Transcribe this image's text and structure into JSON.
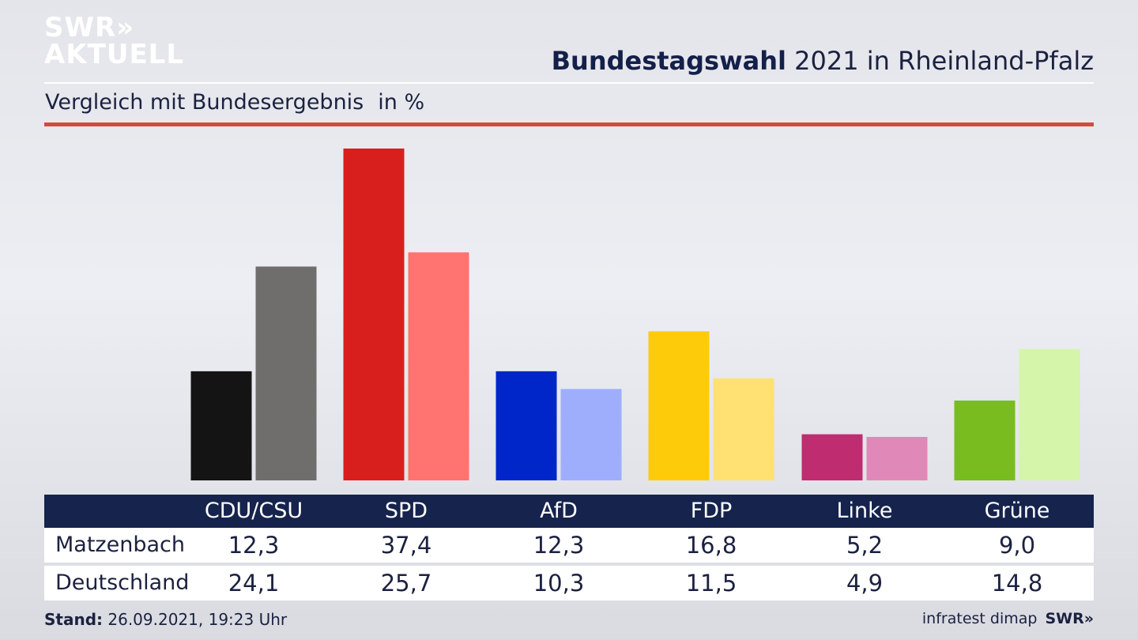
{
  "brand": {
    "line1": "SWR»",
    "line2": "AKTUELL"
  },
  "header": {
    "title_bold": "Bundestagswahl",
    "title_rest": " 2021 in Rheinland-Pfalz",
    "subtitle": "Vergleich mit Bundesergebnis",
    "unit": "in %"
  },
  "colors": {
    "header_bg": "#15234d",
    "accent_rule": "#d24b3f",
    "parties": [
      {
        "local": "#141414",
        "national": "#706e6c"
      },
      {
        "local": "#d91e1e",
        "national": "#ff7370"
      },
      {
        "local": "#0026c9",
        "national": "#9eaefd"
      },
      {
        "local": "#fdcb0a",
        "national": "#ffe072"
      },
      {
        "local": "#bf2c70",
        "national": "#e088b8"
      },
      {
        "local": "#78bc20",
        "national": "#d4f5aa"
      }
    ]
  },
  "chart_data": {
    "type": "bar",
    "title": "Bundestagswahl 2021 in Rheinland-Pfalz",
    "subtitle": "Vergleich mit Bundesergebnis",
    "unit": "in %",
    "categories": [
      "CDU/CSU",
      "SPD",
      "AfD",
      "FDP",
      "Linke",
      "Grüne"
    ],
    "series": [
      {
        "name": "Matzenbach",
        "values": [
          12.3,
          37.4,
          12.3,
          16.8,
          5.2,
          9.0
        ]
      },
      {
        "name": "Deutschland",
        "values": [
          24.1,
          25.7,
          10.3,
          11.5,
          4.9,
          14.8
        ]
      }
    ],
    "ylim": [
      0,
      37.4
    ],
    "grid": false
  },
  "table": {
    "headers": [
      "CDU/CSU",
      "SPD",
      "AfD",
      "FDP",
      "Linke",
      "Grüne"
    ],
    "rows": [
      {
        "label": "Matzenbach",
        "values": [
          "12,3",
          "37,4",
          "12,3",
          "16,8",
          "5,2",
          "9,0"
        ]
      },
      {
        "label": "Deutschland",
        "values": [
          "24,1",
          "25,7",
          "10,3",
          "11,5",
          "4,9",
          "14,8"
        ]
      }
    ]
  },
  "footer": {
    "stand_label": "Stand:",
    "stand_value": " 26.09.2021, 19:23 Uhr",
    "source": "infratest dimap",
    "brand_small": "SWR»"
  }
}
